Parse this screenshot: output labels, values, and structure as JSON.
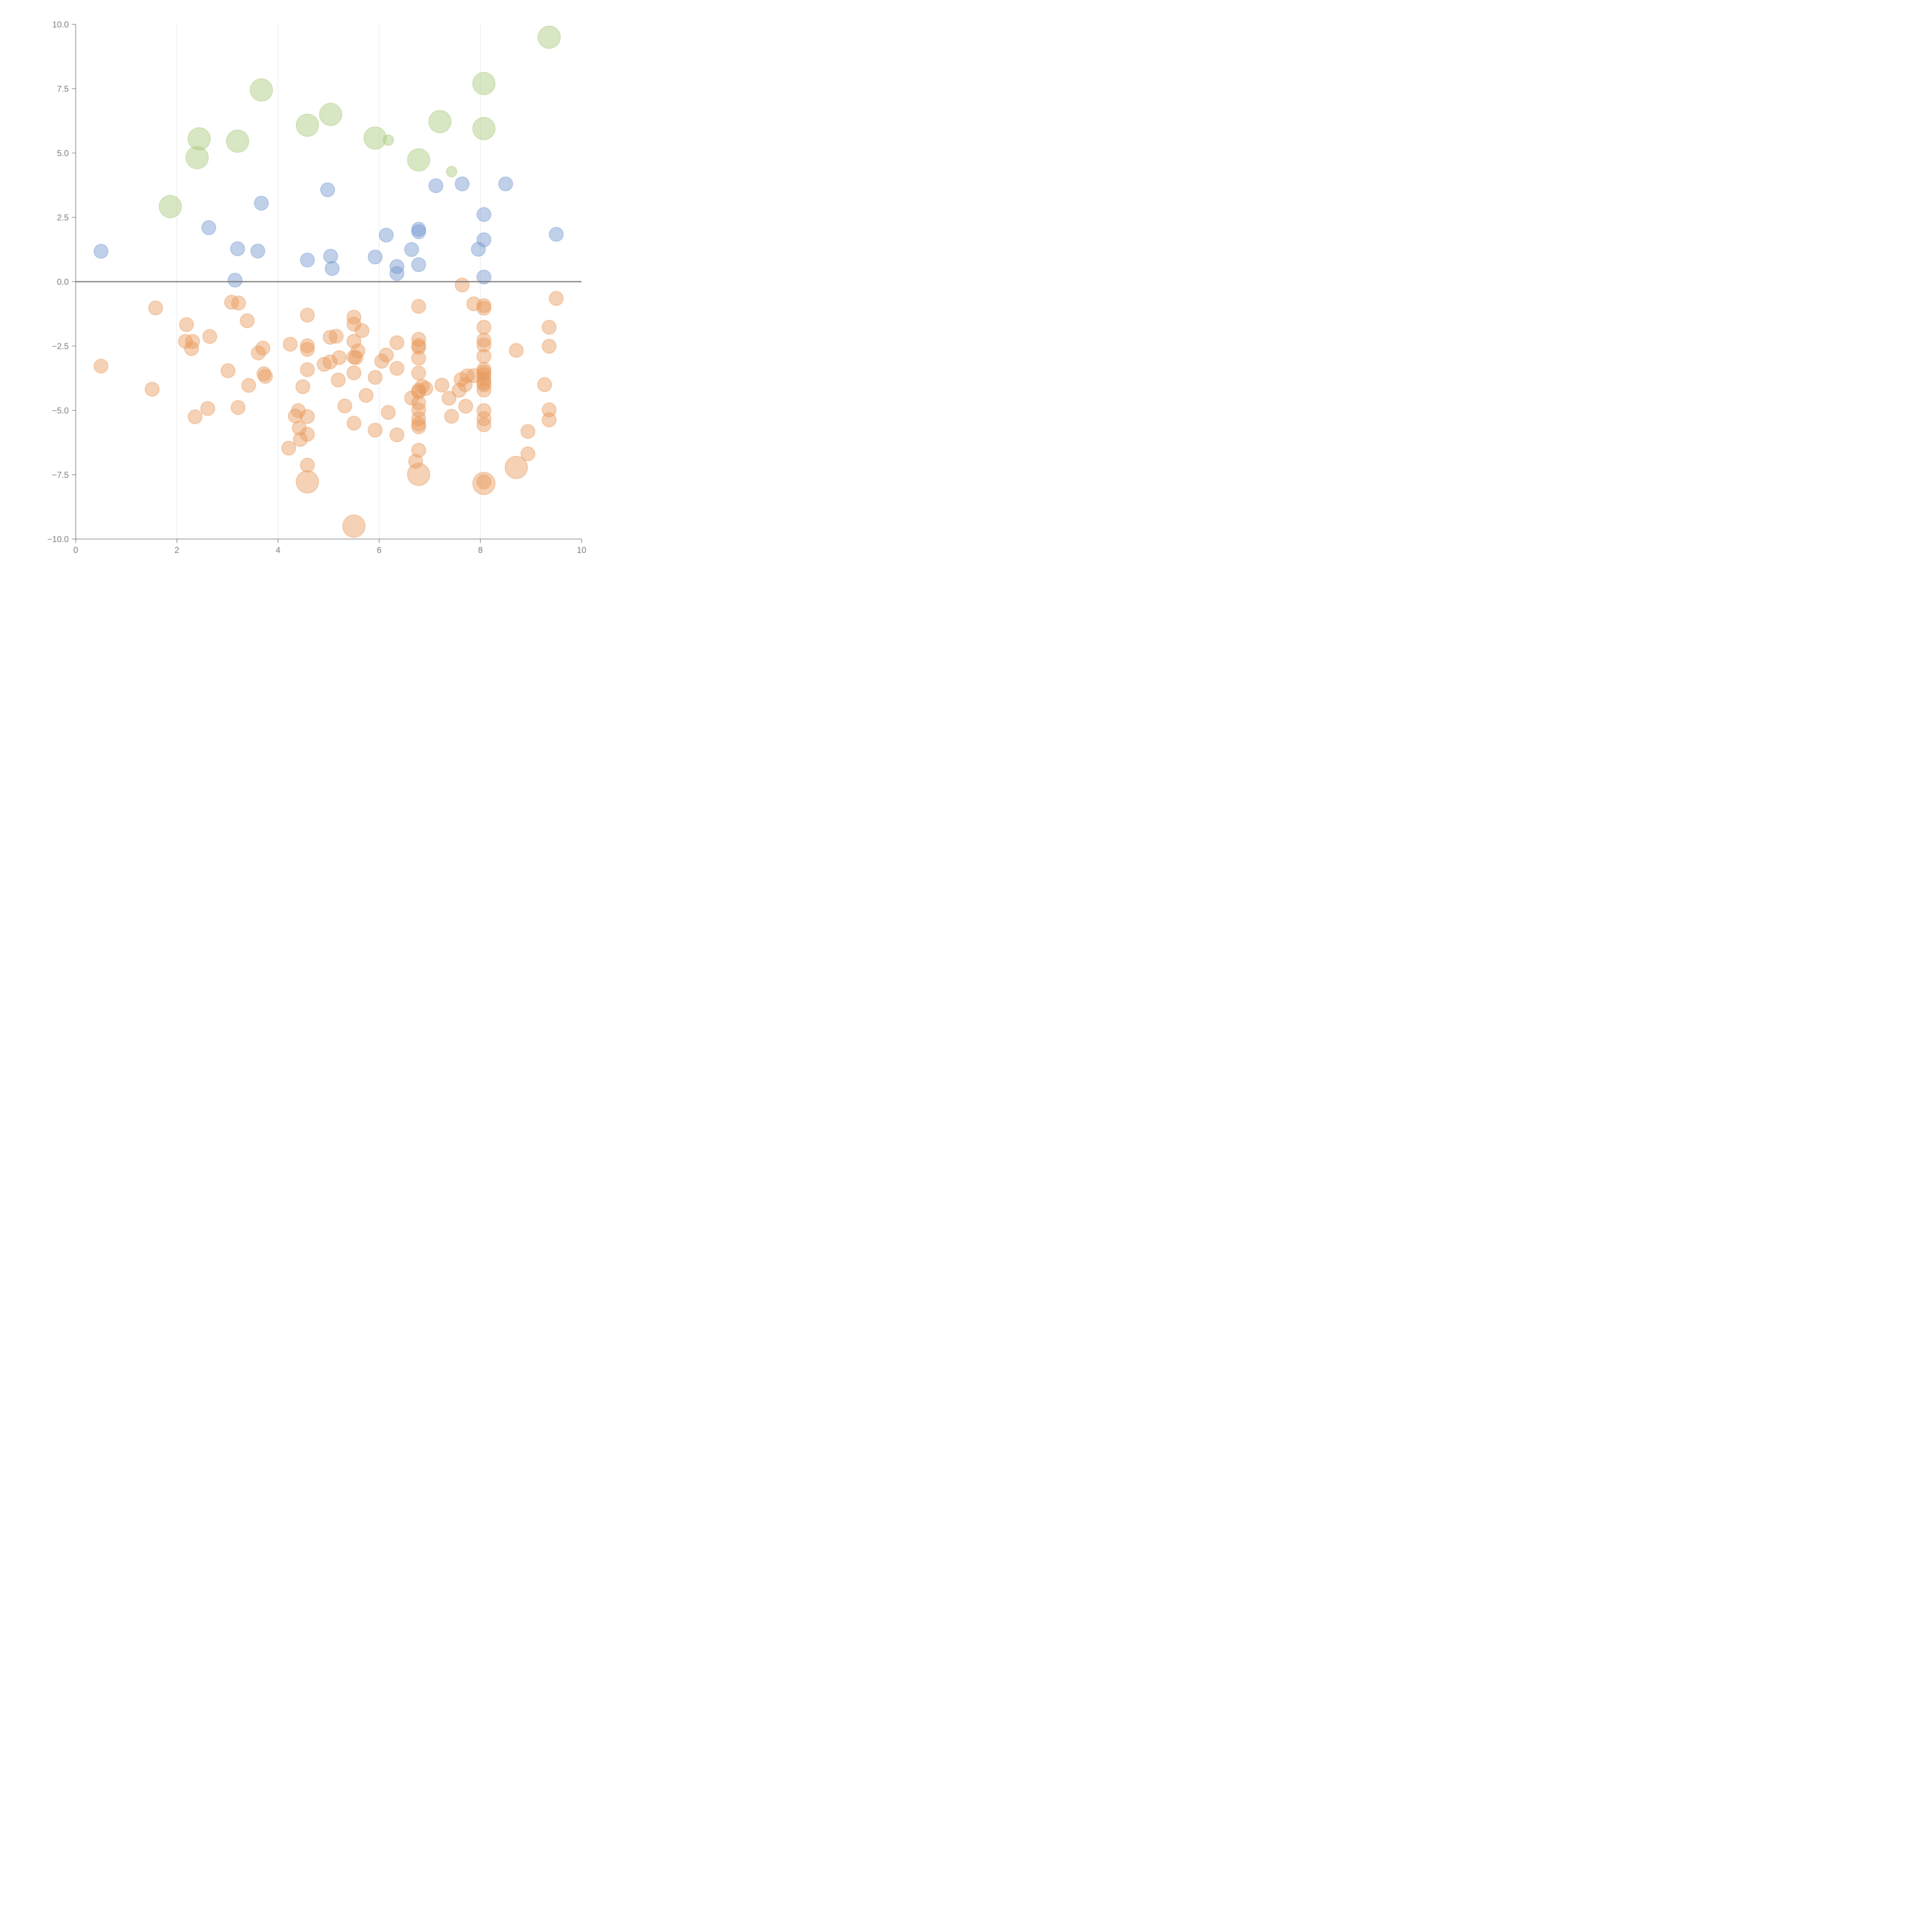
{
  "chart_data": {
    "type": "scatter",
    "xlim": [
      0,
      10
    ],
    "ylim": [
      -10,
      10
    ],
    "x_ticks": [
      "0",
      "2",
      "4",
      "6",
      "8",
      "10"
    ],
    "y_ticks": [
      "−10.0",
      "−7.5",
      "−5.0",
      "−2.5",
      "0.0",
      "2.5",
      "5.0",
      "7.5",
      "10.0"
    ],
    "vertical_grid": true,
    "horizontal_grid": false,
    "zero_line": true,
    "colors": {
      "green": "#a9c97a",
      "blue": "#7397cf",
      "orange": "#e89a5c"
    },
    "series": [
      {
        "color": "green",
        "points": [
          [
            1.87,
            2.92,
            1.6
          ],
          [
            2.44,
            5.55,
            1.6
          ],
          [
            2.4,
            4.82,
            1.6
          ],
          [
            3.2,
            5.46,
            1.6
          ],
          [
            3.67,
            7.45,
            1.6
          ],
          [
            4.58,
            6.08,
            1.6
          ],
          [
            5.04,
            6.5,
            1.6
          ],
          [
            5.92,
            5.58,
            1.6
          ],
          [
            6.78,
            4.73,
            1.6
          ],
          [
            7.2,
            6.22,
            1.6
          ],
          [
            8.07,
            7.7,
            1.6
          ],
          [
            8.07,
            5.95,
            1.6
          ],
          [
            9.36,
            9.5,
            1.6
          ],
          [
            6.18,
            5.5,
            0.75
          ],
          [
            7.43,
            4.28,
            0.75
          ]
        ]
      },
      {
        "color": "blue",
        "points": [
          [
            0.5,
            1.18,
            1
          ],
          [
            2.63,
            2.1,
            1
          ],
          [
            3.15,
            0.06,
            1
          ],
          [
            3.2,
            1.28,
            1
          ],
          [
            3.6,
            1.19,
            1
          ],
          [
            3.67,
            3.05,
            1
          ],
          [
            4.58,
            0.84,
            1
          ],
          [
            4.98,
            3.57,
            1
          ],
          [
            5.04,
            0.99,
            1
          ],
          [
            5.07,
            0.51,
            1
          ],
          [
            5.92,
            0.96,
            1
          ],
          [
            6.14,
            1.81,
            1
          ],
          [
            6.35,
            0.59,
            1
          ],
          [
            6.35,
            0.32,
            1
          ],
          [
            6.64,
            1.25,
            1
          ],
          [
            6.78,
            2.04,
            1
          ],
          [
            6.78,
            1.94,
            1
          ],
          [
            6.78,
            0.66,
            1
          ],
          [
            7.12,
            3.73,
            1
          ],
          [
            7.64,
            3.8,
            1
          ],
          [
            7.96,
            1.26,
            1
          ],
          [
            8.07,
            2.61,
            1
          ],
          [
            8.07,
            1.63,
            1
          ],
          [
            8.07,
            0.18,
            1
          ],
          [
            8.5,
            3.8,
            1
          ],
          [
            9.5,
            1.84,
            1
          ]
        ]
      },
      {
        "color": "orange",
        "points": [
          [
            0.5,
            -3.28,
            1
          ],
          [
            1.51,
            -4.18,
            1
          ],
          [
            1.58,
            -1.02,
            1
          ],
          [
            2.17,
            -2.32,
            1
          ],
          [
            2.19,
            -1.67,
            1
          ],
          [
            2.29,
            -2.6,
            1
          ],
          [
            2.31,
            -2.32,
            1
          ],
          [
            2.36,
            -5.25,
            1
          ],
          [
            2.61,
            -4.93,
            1
          ],
          [
            2.65,
            -2.13,
            1
          ],
          [
            3.01,
            -3.46,
            1
          ],
          [
            3.08,
            -0.8,
            1
          ],
          [
            3.22,
            -0.83,
            1
          ],
          [
            3.21,
            -4.89,
            1
          ],
          [
            3.39,
            -1.52,
            1
          ],
          [
            3.42,
            -4.03,
            1
          ],
          [
            3.61,
            -2.77,
            1
          ],
          [
            3.7,
            -2.58,
            1
          ],
          [
            3.72,
            -3.58,
            1
          ],
          [
            3.75,
            -3.68,
            1
          ],
          [
            4.21,
            -6.47,
            1
          ],
          [
            4.24,
            -2.43,
            1
          ],
          [
            4.34,
            -5.22,
            1
          ],
          [
            4.4,
            -5.01,
            1
          ],
          [
            4.42,
            -5.69,
            1
          ],
          [
            4.44,
            -6.13,
            1
          ],
          [
            4.49,
            -4.08,
            1
          ],
          [
            4.58,
            -1.3,
            1
          ],
          [
            4.58,
            -2.49,
            1
          ],
          [
            4.58,
            -2.63,
            1
          ],
          [
            4.58,
            -3.42,
            1
          ],
          [
            4.58,
            -5.24,
            1
          ],
          [
            4.58,
            -5.93,
            1
          ],
          [
            4.58,
            -7.13,
            1
          ],
          [
            4.58,
            -7.78,
            1.6
          ],
          [
            4.91,
            -3.21,
            1
          ],
          [
            5.03,
            -2.16,
            1
          ],
          [
            5.03,
            -3.12,
            1
          ],
          [
            5.15,
            -2.12,
            1
          ],
          [
            5.19,
            -3.82,
            1
          ],
          [
            5.21,
            -2.95,
            1
          ],
          [
            5.32,
            -4.83,
            1
          ],
          [
            5.5,
            -1.38,
            1
          ],
          [
            5.5,
            -1.65,
            1
          ],
          [
            5.5,
            -2.32,
            1
          ],
          [
            5.5,
            -2.93,
            1
          ],
          [
            5.5,
            -3.54,
            1
          ],
          [
            5.5,
            -5.5,
            1
          ],
          [
            5.5,
            -9.5,
            1.6
          ],
          [
            5.54,
            -2.95,
            1
          ],
          [
            5.58,
            -2.69,
            1
          ],
          [
            5.66,
            -1.9,
            1
          ],
          [
            5.74,
            -4.42,
            1
          ],
          [
            5.92,
            -3.72,
            1
          ],
          [
            5.92,
            -5.77,
            1
          ],
          [
            6.05,
            -3.09,
            1
          ],
          [
            6.14,
            -2.85,
            1
          ],
          [
            6.18,
            -5.08,
            1
          ],
          [
            6.35,
            -2.37,
            1
          ],
          [
            6.35,
            -3.37,
            1
          ],
          [
            6.35,
            -5.95,
            1
          ],
          [
            6.64,
            -4.52,
            1
          ],
          [
            6.72,
            -6.98,
            1
          ],
          [
            6.78,
            -0.96,
            1
          ],
          [
            6.78,
            -2.24,
            1
          ],
          [
            6.78,
            -2.48,
            1
          ],
          [
            6.78,
            -2.55,
            1
          ],
          [
            6.78,
            -2.97,
            1
          ],
          [
            6.78,
            -3.55,
            1
          ],
          [
            6.78,
            -4.22,
            1
          ],
          [
            6.78,
            -4.28,
            1
          ],
          [
            6.78,
            -4.71,
            1
          ],
          [
            6.78,
            -4.99,
            1
          ],
          [
            6.78,
            -5.32,
            1
          ],
          [
            6.78,
            -5.53,
            1
          ],
          [
            6.78,
            -5.64,
            1
          ],
          [
            6.78,
            -6.55,
            1
          ],
          [
            6.78,
            -7.49,
            1.6
          ],
          [
            6.85,
            -4.07,
            1
          ],
          [
            6.92,
            -4.15,
            1
          ],
          [
            7.24,
            -4.02,
            1
          ],
          [
            7.38,
            -4.53,
            1
          ],
          [
            7.43,
            -5.23,
            1
          ],
          [
            7.58,
            -4.22,
            1
          ],
          [
            7.62,
            -3.8,
            1
          ],
          [
            7.64,
            -0.13,
            1
          ],
          [
            7.7,
            -4.0,
            1
          ],
          [
            7.71,
            -4.84,
            1
          ],
          [
            7.74,
            -3.66,
            1
          ],
          [
            7.87,
            -3.65,
            1
          ],
          [
            7.87,
            -0.86,
            1
          ],
          [
            8.07,
            -0.93,
            1
          ],
          [
            8.07,
            -1.03,
            1
          ],
          [
            8.07,
            -1.77,
            1
          ],
          [
            8.07,
            -2.27,
            1
          ],
          [
            8.07,
            -2.46,
            1
          ],
          [
            8.07,
            -2.9,
            1
          ],
          [
            8.07,
            -3.41,
            1
          ],
          [
            8.07,
            -3.52,
            1
          ],
          [
            8.07,
            -3.62,
            1
          ],
          [
            8.07,
            -3.78,
            1
          ],
          [
            8.07,
            -3.92,
            1
          ],
          [
            8.07,
            -4.01,
            1
          ],
          [
            8.07,
            -4.21,
            1
          ],
          [
            8.07,
            -5.01,
            1
          ],
          [
            8.07,
            -5.32,
            1
          ],
          [
            8.07,
            -5.56,
            1
          ],
          [
            8.07,
            -7.78,
            1
          ],
          [
            8.07,
            -7.84,
            1.6
          ],
          [
            8.71,
            -2.67,
            1
          ],
          [
            8.71,
            -7.22,
            1.6
          ],
          [
            8.94,
            -5.82,
            1
          ],
          [
            8.94,
            -6.69,
            1
          ],
          [
            9.27,
            -4.0,
            1
          ],
          [
            9.36,
            -1.77,
            1
          ],
          [
            9.36,
            -2.51,
            1
          ],
          [
            9.36,
            -4.98,
            1
          ],
          [
            9.36,
            -5.37,
            1
          ],
          [
            9.5,
            -0.65,
            1
          ]
        ]
      }
    ]
  }
}
